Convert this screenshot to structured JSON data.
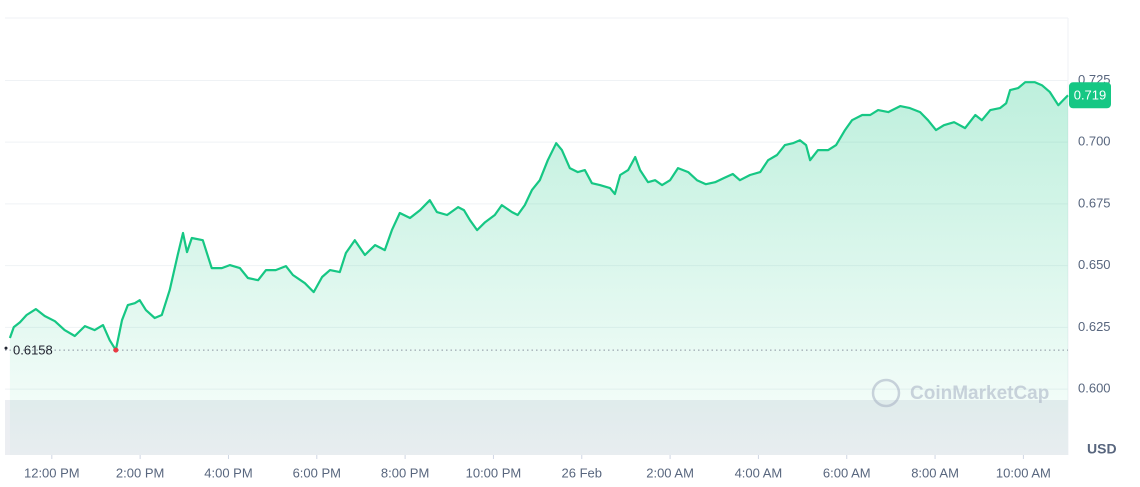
{
  "chart_data": {
    "type": "line",
    "color": "#16c784",
    "low_color": "#ea3943",
    "grid": true,
    "xlim": [
      -1.06,
      23.01
    ],
    "ylim": [
      0.5733,
      0.7503
    ],
    "xticks": [
      {
        "value": 0,
        "label": "12:00 PM"
      },
      {
        "value": 2,
        "label": "2:00 PM"
      },
      {
        "value": 4,
        "label": "4:00 PM"
      },
      {
        "value": 6,
        "label": "6:00 PM"
      },
      {
        "value": 8,
        "label": "8:00 PM"
      },
      {
        "value": 10,
        "label": "10:00 PM"
      },
      {
        "value": 12,
        "label": "26 Feb"
      },
      {
        "value": 14,
        "label": "2:00 AM"
      },
      {
        "value": 16,
        "label": "4:00 AM"
      },
      {
        "value": 18,
        "label": "6:00 AM"
      },
      {
        "value": 20,
        "label": "8:00 AM"
      },
      {
        "value": 22,
        "label": "10:00 AM"
      }
    ],
    "yticks": [
      {
        "value": 0.6,
        "label": "0.600"
      },
      {
        "value": 0.625,
        "label": "0.625"
      },
      {
        "value": 0.65,
        "label": "0.650"
      },
      {
        "value": 0.675,
        "label": "0.675"
      },
      {
        "value": 0.7,
        "label": "0.700"
      },
      {
        "value": 0.725,
        "label": "0.725"
      }
    ],
    "unit_label": "USD",
    "watermark": "CoinMarketCap",
    "low": 0.6158,
    "last": 0.719,
    "x": [
      -0.95,
      -0.86,
      -0.72,
      -0.57,
      -0.36,
      -0.16,
      0.07,
      0.29,
      0.52,
      0.75,
      0.97,
      1.16,
      1.31,
      1.45,
      1.59,
      1.72,
      1.88,
      1.99,
      2.13,
      2.33,
      2.49,
      2.67,
      2.85,
      2.97,
      3.06,
      3.17,
      3.42,
      3.62,
      3.85,
      4.03,
      4.26,
      4.44,
      4.67,
      4.85,
      5.07,
      5.3,
      5.46,
      5.73,
      5.93,
      6.12,
      6.3,
      6.52,
      6.66,
      6.86,
      7.09,
      7.32,
      7.54,
      7.7,
      7.88,
      8.11,
      8.34,
      8.56,
      8.72,
      8.95,
      9.2,
      9.33,
      9.47,
      9.63,
      9.81,
      10.03,
      10.19,
      10.42,
      10.55,
      10.71,
      10.87,
      11.05,
      11.23,
      11.42,
      11.55,
      11.73,
      11.91,
      12.07,
      12.23,
      12.41,
      12.64,
      12.75,
      12.87,
      13.05,
      13.21,
      13.32,
      13.5,
      13.66,
      13.82,
      14.0,
      14.18,
      14.41,
      14.61,
      14.81,
      15.02,
      15.22,
      15.42,
      15.58,
      15.81,
      16.04,
      16.22,
      16.42,
      16.6,
      16.78,
      16.94,
      17.08,
      17.17,
      17.35,
      17.58,
      17.76,
      17.96,
      18.12,
      18.35,
      18.53,
      18.71,
      18.94,
      19.21,
      19.43,
      19.66,
      19.84,
      20.02,
      20.2,
      20.43,
      20.68,
      20.91,
      21.06,
      21.25,
      21.47,
      21.61,
      21.7,
      21.88,
      22.04,
      22.26,
      22.42,
      22.6,
      22.79,
      22.9,
      23.01
    ],
    "values": [
      0.6207,
      0.6251,
      0.6271,
      0.63,
      0.6324,
      0.6296,
      0.6275,
      0.6239,
      0.6215,
      0.6255,
      0.6239,
      0.6259,
      0.6198,
      0.6158,
      0.6279,
      0.634,
      0.6348,
      0.636,
      0.632,
      0.6288,
      0.63,
      0.6401,
      0.6543,
      0.6632,
      0.6555,
      0.6612,
      0.6603,
      0.649,
      0.649,
      0.6502,
      0.649,
      0.645,
      0.6441,
      0.6482,
      0.6482,
      0.6498,
      0.6462,
      0.6429,
      0.6393,
      0.6454,
      0.6482,
      0.6474,
      0.6551,
      0.6603,
      0.6543,
      0.6583,
      0.6563,
      0.6644,
      0.6713,
      0.6693,
      0.6725,
      0.6765,
      0.6717,
      0.6705,
      0.6737,
      0.6725,
      0.6684,
      0.6644,
      0.6676,
      0.6705,
      0.6745,
      0.6717,
      0.6705,
      0.6745,
      0.6806,
      0.6846,
      0.6927,
      0.6996,
      0.6968,
      0.6895,
      0.6879,
      0.6887,
      0.6834,
      0.6826,
      0.6814,
      0.679,
      0.6867,
      0.6887,
      0.694,
      0.6887,
      0.6838,
      0.6846,
      0.6826,
      0.6846,
      0.6895,
      0.6879,
      0.6846,
      0.683,
      0.6838,
      0.6855,
      0.6871,
      0.6846,
      0.6867,
      0.6879,
      0.6927,
      0.6948,
      0.6988,
      0.6996,
      0.7008,
      0.6988,
      0.6927,
      0.6968,
      0.6968,
      0.6988,
      0.7049,
      0.7089,
      0.711,
      0.711,
      0.713,
      0.7122,
      0.7146,
      0.7138,
      0.7122,
      0.7089,
      0.7049,
      0.7069,
      0.7081,
      0.7057,
      0.711,
      0.7089,
      0.713,
      0.7138,
      0.7158,
      0.7211,
      0.7219,
      0.7243,
      0.7243,
      0.7231,
      0.7203,
      0.715,
      0.717,
      0.719
    ]
  }
}
